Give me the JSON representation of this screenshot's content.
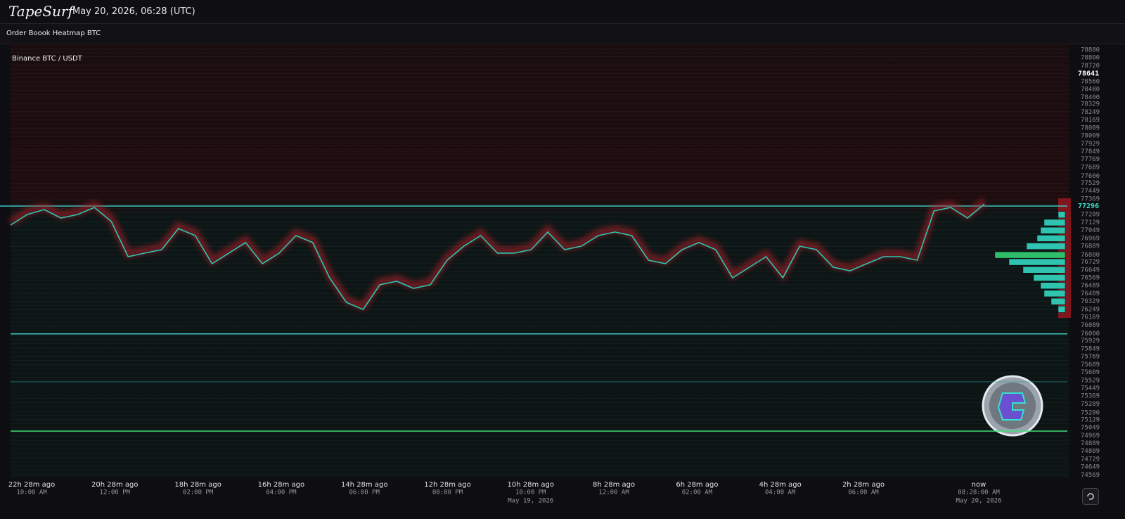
{
  "header": {
    "logo": "TapeSurf",
    "datetime": "May 20, 2026, 06:28 (UTC)"
  },
  "panel_title": "Order Boook Heatmap BTC",
  "chart_data": {
    "type": "line",
    "title": "Binance BTC / USDT",
    "color": "#2ec4b0",
    "ylim": [
      74536,
      78944
    ],
    "yticks": [
      78880,
      78800,
      78720,
      78560,
      78480,
      78400,
      78329,
      78249,
      78169,
      78089,
      78009,
      77929,
      77849,
      77769,
      77689,
      77600,
      77529,
      77449,
      77369,
      77209,
      77129,
      77049,
      76969,
      76889,
      76800,
      76729,
      76649,
      76569,
      76489,
      76409,
      76329,
      76249,
      76169,
      76089,
      76000,
      75929,
      75849,
      75769,
      75689,
      75609,
      75529,
      75449,
      75369,
      75289,
      75200,
      75129,
      75049,
      74969,
      74889,
      74809,
      74729,
      74649,
      74569
    ],
    "high_price": 78641,
    "current_price": 77296,
    "values": [
      77104,
      77211,
      77261,
      77175,
      77211,
      77282,
      77140,
      76783,
      76819,
      76854,
      77068,
      76997,
      76712,
      76819,
      76926,
      76712,
      76819,
      76997,
      76926,
      76569,
      76319,
      76248,
      76498,
      76533,
      76462,
      76498,
      76747,
      76890,
      76997,
      76819,
      76819,
      76854,
      77033,
      76854,
      76890,
      76997,
      77033,
      76997,
      76747,
      76712,
      76854,
      76926,
      76854,
      76569,
      76676,
      76783,
      76569,
      76890,
      76854,
      76676,
      76640,
      76712,
      76783,
      76783,
      76747,
      77247,
      77282,
      77175,
      77318
    ],
    "levels": [
      77296,
      76000,
      75513,
      75014
    ],
    "depth": {
      "prices": [
        77209,
        77129,
        77049,
        76969,
        76889,
        76800,
        76729,
        76649,
        76569,
        76489,
        76409,
        76329,
        76249
      ],
      "sizes": [
        10,
        30,
        35,
        40,
        55,
        100,
        80,
        60,
        45,
        35,
        30,
        20,
        10
      ]
    },
    "x_labels": [
      {
        "ago": "22h 28m ago",
        "time": "10:00 AM"
      },
      {
        "ago": "20h 28m ago",
        "time": "12:00 PM"
      },
      {
        "ago": "18h 28m ago",
        "time": "02:00 PM"
      },
      {
        "ago": "16h 28m ago",
        "time": "04:00 PM"
      },
      {
        "ago": "14h 28m ago",
        "time": "06:00 PM"
      },
      {
        "ago": "12h 28m ago",
        "time": "08:00 PM"
      },
      {
        "ago": "10h 28m ago",
        "time": "10:00 PM",
        "date": "May 19, 2026"
      },
      {
        "ago": "8h 28m ago",
        "time": "12:00 AM"
      },
      {
        "ago": "6h 28m ago",
        "time": "02:00 AM"
      },
      {
        "ago": "4h 28m ago",
        "time": "04:00 AM"
      },
      {
        "ago": "2h 28m ago",
        "time": "06:00 AM"
      },
      {
        "ago": "now",
        "time": "08:28:00 AM",
        "date": "May 20, 2026"
      }
    ]
  }
}
